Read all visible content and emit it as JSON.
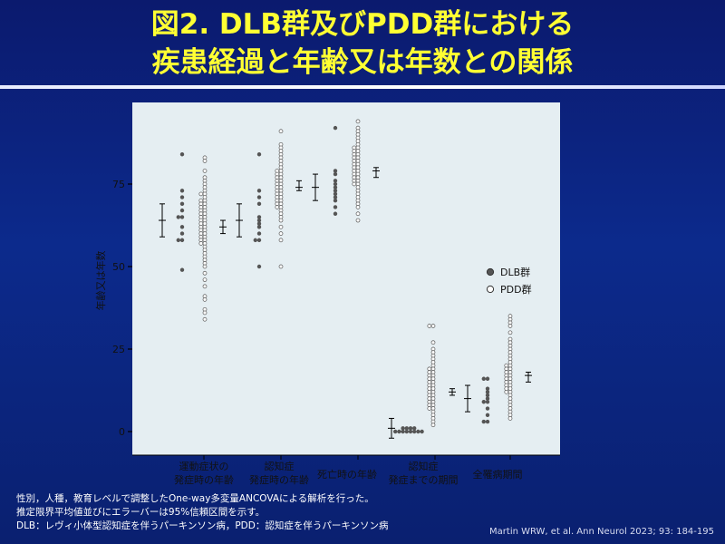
{
  "slide": {
    "title_line1": "図2. DLB群及びPDD群における",
    "title_line2": "疾患経過と年齢又は年数との関係"
  },
  "footnotes": [
    "性別，人種，教育レベルで調整したOne-way多変量ANCOVAによる解析を行った。",
    "推定限界平均値並びにエラーバーは95%信頼区間を示す。",
    "DLB：レヴィ小体型認知症を伴うパーキンソン病，PDD：認知症を伴うパーキンソン病"
  ],
  "citation": "Martin WRW, et al. Ann Neurol 2023; 93: 184-195",
  "colors": {
    "plot_background": "#e5eef2",
    "dlb_dot": "#555555",
    "pdd_dot_stroke": "#555555",
    "title_text": "#ffff33"
  },
  "chart_data": {
    "type": "scatter",
    "subtype": "grouped dot plot with mean and 95% CI error bars",
    "ylabel": "年齢又は年数",
    "ylim": [
      -3,
      99
    ],
    "yticks": [
      0,
      25,
      50,
      75
    ],
    "grid": false,
    "legend_position": "right",
    "legend": [
      {
        "name": "DLB群",
        "marker": "filled"
      },
      {
        "name": "PDD群",
        "marker": "open"
      }
    ],
    "categories": [
      "運動症状の\n発症時の年齢",
      "認知症\n発症時の年齢",
      "死亡時の年齢",
      "認知症\n発症までの期間",
      "全罹病期間"
    ],
    "groups": [
      {
        "category": "運動症状の\n発症時の年齢",
        "DLB": {
          "mean": 64,
          "ci": [
            59,
            69
          ],
          "dots": [
            84,
            73,
            71,
            69,
            67,
            65,
            65,
            62,
            60,
            58,
            58,
            49
          ]
        },
        "PDD": {
          "mean": 62,
          "ci": [
            60,
            64
          ],
          "dots": [
            83,
            82,
            79,
            77,
            76,
            75,
            74,
            73,
            72,
            72,
            71,
            70,
            70,
            69,
            69,
            68,
            68,
            67,
            67,
            66,
            66,
            65,
            65,
            64,
            64,
            63,
            63,
            62,
            62,
            61,
            61,
            60,
            60,
            59,
            59,
            58,
            58,
            57,
            57,
            56,
            55,
            54,
            53,
            52,
            51,
            50,
            48,
            46,
            44,
            41,
            40,
            37,
            36,
            34
          ]
        }
      },
      {
        "category": "認知症\n発症時の年齢",
        "DLB": {
          "mean": 64,
          "ci": [
            59,
            69
          ],
          "dots": [
            84,
            73,
            71,
            69,
            65,
            64,
            63,
            62,
            60,
            58,
            58,
            50
          ]
        },
        "PDD": {
          "mean": 74,
          "ci": [
            73,
            76
          ],
          "dots": [
            91,
            87,
            86,
            85,
            84,
            83,
            82,
            81,
            80,
            79,
            79,
            78,
            78,
            77,
            77,
            76,
            76,
            75,
            75,
            74,
            74,
            73,
            73,
            72,
            72,
            71,
            71,
            70,
            70,
            69,
            69,
            68,
            68,
            67,
            66,
            65,
            64,
            62,
            60,
            58,
            50
          ]
        }
      },
      {
        "category": "死亡時の年齢",
        "DLB": {
          "mean": 74,
          "ci": [
            70,
            78
          ],
          "dots": [
            92,
            79,
            78,
            76,
            75,
            74,
            73,
            72,
            71,
            70,
            68,
            66
          ]
        },
        "PDD": {
          "mean": 79,
          "ci": [
            77,
            80
          ],
          "dots": [
            94,
            92,
            91,
            90,
            89,
            88,
            87,
            86,
            86,
            85,
            85,
            84,
            84,
            83,
            83,
            82,
            82,
            81,
            81,
            80,
            80,
            79,
            79,
            78,
            78,
            77,
            77,
            76,
            76,
            75,
            75,
            74,
            73,
            72,
            71,
            70,
            69,
            68,
            66,
            64
          ]
        }
      },
      {
        "category": "認知症\n発症までの期間",
        "DLB": {
          "mean": 1,
          "ci": [
            -2,
            4
          ],
          "dots": [
            1,
            1,
            1,
            1,
            0,
            0,
            0,
            0,
            0,
            0,
            0,
            0
          ]
        },
        "PDD": {
          "mean": 12,
          "ci": [
            11,
            13
          ],
          "dots": [
            32,
            32,
            27,
            25,
            24,
            23,
            22,
            21,
            20,
            19,
            19,
            18,
            18,
            17,
            17,
            16,
            16,
            15,
            15,
            14,
            14,
            13,
            13,
            12,
            12,
            11,
            11,
            10,
            10,
            9,
            9,
            8,
            8,
            7,
            7,
            6,
            5,
            4,
            3,
            2
          ]
        }
      },
      {
        "category": "全罹病期間",
        "DLB": {
          "mean": 10,
          "ci": [
            6,
            14
          ],
          "dots": [
            16,
            16,
            13,
            12,
            11,
            10,
            9,
            9,
            7,
            5,
            3,
            3
          ]
        },
        "PDD": {
          "mean": 17,
          "ci": [
            15,
            18
          ],
          "dots": [
            35,
            34,
            33,
            32,
            30,
            28,
            27,
            26,
            25,
            24,
            23,
            22,
            21,
            20,
            20,
            19,
            19,
            18,
            18,
            17,
            17,
            16,
            16,
            15,
            15,
            14,
            14,
            13,
            13,
            12,
            12,
            11,
            10,
            9,
            8,
            7,
            6,
            5,
            4
          ]
        }
      }
    ]
  }
}
